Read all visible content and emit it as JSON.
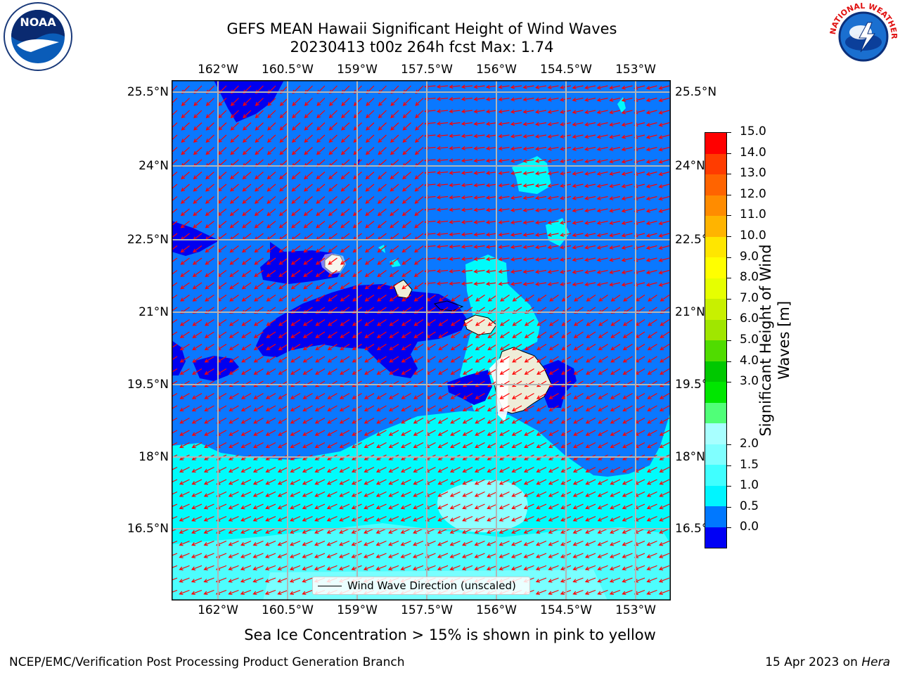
{
  "title": {
    "line1": "GEFS MEAN Hawaii Significant Height of Wind Waves",
    "line2": "20230413 t00z 264h fcst   Max: 1.74"
  },
  "logos": {
    "left": "NOAA",
    "right": "NATIONAL WEATHER SERVICE"
  },
  "axes": {
    "lon_ticks": [
      "162°W",
      "160.5°W",
      "159°W",
      "157.5°W",
      "156°W",
      "154.5°W",
      "153°W"
    ],
    "lat_ticks_left": [
      "25.5°N",
      "24°N",
      "22.5°N",
      "21°N",
      "19.5°N",
      "18°N",
      "16.5°N"
    ],
    "lat_ticks_right": [
      "25.5°N",
      "24°N",
      "22.5°",
      "21°N",
      "19.5°",
      "18°N",
      "16.5°"
    ],
    "gridlines": true
  },
  "legend": {
    "label": "Wind Wave Direction (unscaled)"
  },
  "colorbar": {
    "label_line1": "Significant Height of Wind",
    "label_line2": "Waves [m]",
    "ticks": [
      "15.0",
      "14.0",
      "13.0",
      "12.0",
      "11.0",
      "10.0",
      "9.0",
      "8.0",
      "7.0",
      "6.0",
      "5.0",
      "4.0",
      "3.0",
      "2.0",
      "1.5",
      "1.0",
      "0.5",
      "0.0"
    ],
    "colors": [
      "#0000f5",
      "#0078ff",
      "#00f5ff",
      "#40ffff",
      "#80ffff",
      "#a8ffff",
      "#50ff78",
      "#00e600",
      "#00c800",
      "#50dc00",
      "#a0e600",
      "#c8f000",
      "#e6ff00",
      "#ffff00",
      "#ffe600",
      "#ffb400",
      "#ff8c00",
      "#ff6400",
      "#ff3c00",
      "#ff0000"
    ]
  },
  "map_colors": {
    "dark": "#0000f0",
    "mid": "#0a78ff",
    "cyan": "#00fbfb",
    "light": "#8cffff",
    "land": "#efedd8",
    "arrow": "#ff0000",
    "grid": "#b4b4b4"
  },
  "footer": {
    "note": "Sea Ice Concentration > 15% is shown in pink to yellow",
    "credit": "NCEP/EMC/Verification Post Processing Product Generation Branch",
    "date": "15 Apr 2023 on",
    "host": "Hera"
  }
}
